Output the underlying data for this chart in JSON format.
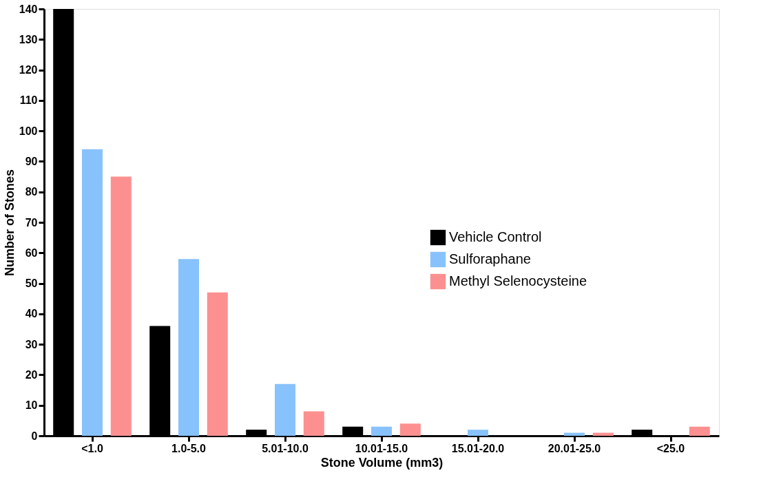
{
  "chart_data": {
    "type": "bar",
    "xlabel": "Stone Volume (mm3)",
    "ylabel": "Number of Stones",
    "categories": [
      "<1.0",
      "1.0-5.0",
      "5.01-10.0",
      "10.01-15.0",
      "15.01-20.0",
      "20.01-25.0",
      "<25.0"
    ],
    "series": [
      {
        "name": "Vehicle Control",
        "color": "#000000",
        "values": [
          140,
          36,
          2,
          3,
          0,
          0,
          2
        ]
      },
      {
        "name": "Sulforaphane",
        "color": "#88c2fc",
        "values": [
          94,
          58,
          17,
          3,
          2,
          1,
          0
        ]
      },
      {
        "name": "Methyl Selenocysteine",
        "color": "#fc9090",
        "values": [
          85,
          47,
          8,
          4,
          0,
          1,
          3
        ]
      }
    ],
    "ylim": [
      0,
      140
    ],
    "yticks": [
      0,
      10,
      20,
      30,
      40,
      50,
      60,
      70,
      80,
      90,
      100,
      110,
      120,
      130,
      140
    ],
    "grid": false,
    "legend": "right"
  }
}
